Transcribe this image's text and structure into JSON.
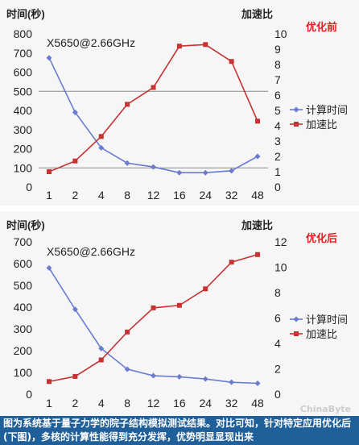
{
  "colors": {
    "compute": "#6a7bd0",
    "speedup": "#c83232",
    "title_red": "#e02020",
    "grid": "#8a8a8a",
    "caption_bg": "#1f5f9a"
  },
  "chart_data": [
    {
      "type": "line",
      "title": "优化前",
      "annotation": "X5650@2.66GHz",
      "ylabel": "时间(秒)",
      "y2label": "加速比",
      "categories": [
        "1",
        "2",
        "4",
        "8",
        "12",
        "16",
        "24",
        "32",
        "48"
      ],
      "ylim": [
        0,
        800
      ],
      "y2lim": [
        0,
        10
      ],
      "yticks": [
        0,
        100,
        200,
        300,
        400,
        500,
        600,
        700,
        800
      ],
      "y2ticks": [
        0,
        1,
        2,
        3,
        4,
        5,
        6,
        7,
        8,
        9,
        10
      ],
      "gridlines": [
        100,
        500
      ],
      "legend_position": "right",
      "series": [
        {
          "name": "计算时间",
          "axis": "left",
          "marker": "diamond",
          "values": [
            675,
            390,
            205,
            125,
            105,
            75,
            75,
            85,
            160
          ]
        },
        {
          "name": "加速比",
          "axis": "right",
          "marker": "square",
          "values": [
            1.0,
            1.7,
            3.3,
            5.4,
            6.5,
            9.2,
            9.3,
            8.2,
            4.3
          ]
        }
      ]
    },
    {
      "type": "line",
      "title": "优化后",
      "annotation": "X5650@2.66GHz",
      "ylabel": "时间(秒)",
      "y2label": "加速比",
      "categories": [
        "1",
        "2",
        "4",
        "8",
        "12",
        "16",
        "24",
        "32",
        "48"
      ],
      "ylim": [
        0,
        700
      ],
      "y2lim": [
        0,
        12
      ],
      "yticks": [
        0,
        100,
        200,
        300,
        400,
        500,
        600,
        700
      ],
      "y2ticks": [
        0,
        2,
        4,
        6,
        8,
        10,
        12
      ],
      "gridlines": [],
      "legend_position": "right",
      "series": [
        {
          "name": "计算时间",
          "axis": "left",
          "marker": "diamond",
          "values": [
            580,
            390,
            210,
            115,
            85,
            80,
            70,
            55,
            50
          ]
        },
        {
          "name": "加速比",
          "axis": "right",
          "marker": "square",
          "values": [
            1.0,
            1.4,
            2.7,
            4.9,
            6.8,
            7.0,
            8.3,
            10.4,
            11.0
          ]
        }
      ]
    }
  ],
  "caption": "图为系统基于量子力学的院子结构模拟测试结果。对比可知，针对特定应用优化后(下图)，多核的计算性能得到充分发挥，优势明显显现出来",
  "watermark": "ChinaByte"
}
